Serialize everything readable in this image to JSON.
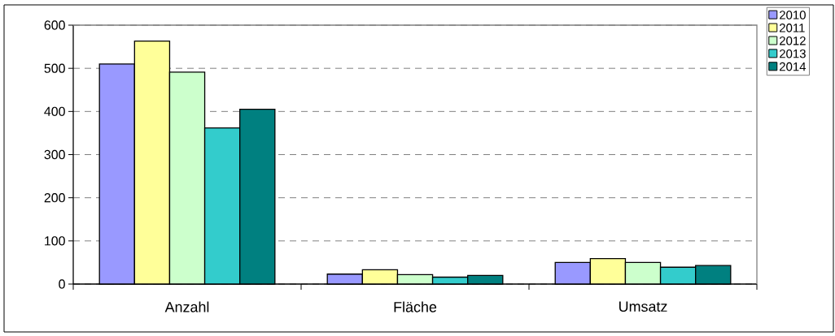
{
  "chart_data": {
    "type": "bar",
    "categories": [
      "Anzahl",
      "Fläche",
      "Umsatz"
    ],
    "series": [
      {
        "name": "2010",
        "color": "#9999ff",
        "values": [
          510,
          23,
          50
        ]
      },
      {
        "name": "2011",
        "color": "#ffff99",
        "values": [
          563,
          33,
          59
        ]
      },
      {
        "name": "2012",
        "color": "#ccffcc",
        "values": [
          491,
          22,
          50
        ]
      },
      {
        "name": "2013",
        "color": "#33cccc",
        "values": [
          362,
          16,
          39
        ]
      },
      {
        "name": "2014",
        "color": "#008080",
        "values": [
          405,
          20,
          43
        ]
      }
    ],
    "ylim": [
      0,
      600
    ],
    "yticks": [
      0,
      100,
      200,
      300,
      400,
      500,
      600
    ],
    "grid": "y",
    "legend": "top right"
  }
}
